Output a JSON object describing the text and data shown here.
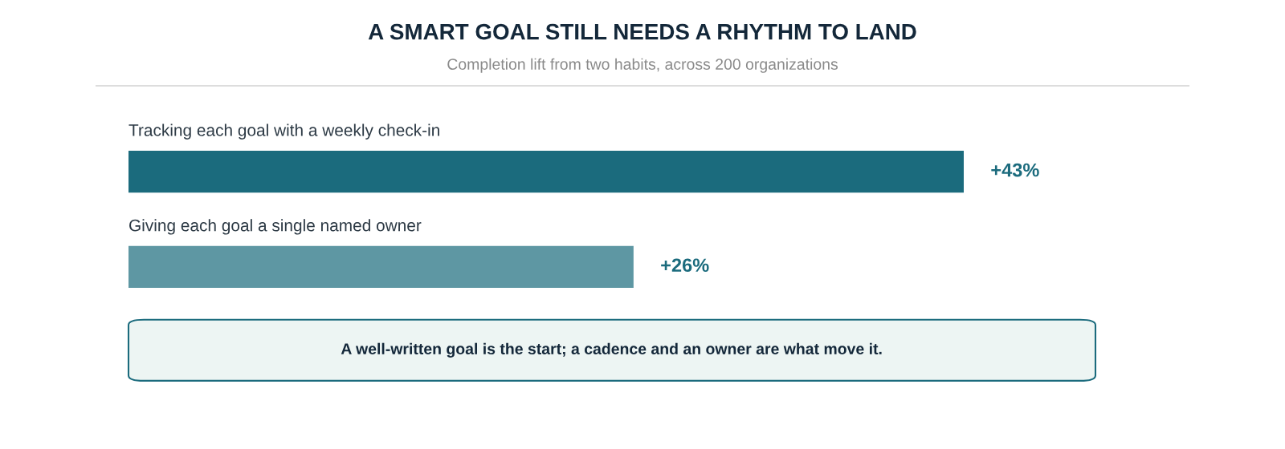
{
  "chart_data": {
    "type": "bar",
    "orientation": "horizontal",
    "title": "A SMART GOAL STILL NEEDS A RHYTHM TO LAND",
    "subtitle": "Completion lift from two habits, across 200 organizations",
    "categories": [
      "Tracking each goal with a weekly check-in",
      "Giving each goal a single named owner"
    ],
    "values": [
      43,
      26
    ],
    "colors": [
      "#1b6b7d",
      "#5e97a3"
    ],
    "value_labels": [
      "+43%",
      "+26%"
    ],
    "annotations": [
      "A well-written goal is the start; a cadence and an owner are what move it."
    ]
  }
}
